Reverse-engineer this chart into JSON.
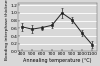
{
  "x": [
    400,
    500,
    600,
    700,
    800,
    900,
    1000,
    1100
  ],
  "y": [
    0.64,
    0.58,
    0.62,
    0.68,
    1.0,
    0.82,
    0.48,
    0.18
  ],
  "yerr": [
    0.1,
    0.1,
    0.05,
    0.08,
    0.14,
    0.07,
    0.08,
    0.1
  ],
  "line_color": "#222222",
  "marker": "s",
  "marker_size": 1.5,
  "xlabel": "Annealing temperature (°C)",
  "ylabel": "Bonding interphase thickness",
  "xlim": [
    360,
    1150
  ],
  "ylim": [
    0.0,
    1.25
  ],
  "xticks": [
    400,
    500,
    600,
    700,
    800,
    900,
    1000,
    1100
  ],
  "yticks": [
    0.0,
    0.2,
    0.4,
    0.6,
    0.8,
    1.0,
    1.2
  ],
  "bg_color": "#d8d8d8",
  "xlabel_fontsize": 3.5,
  "ylabel_fontsize": 3.2,
  "tick_fontsize": 3.2,
  "linewidth": 0.7,
  "capsize": 1.0,
  "elinewidth": 0.5
}
